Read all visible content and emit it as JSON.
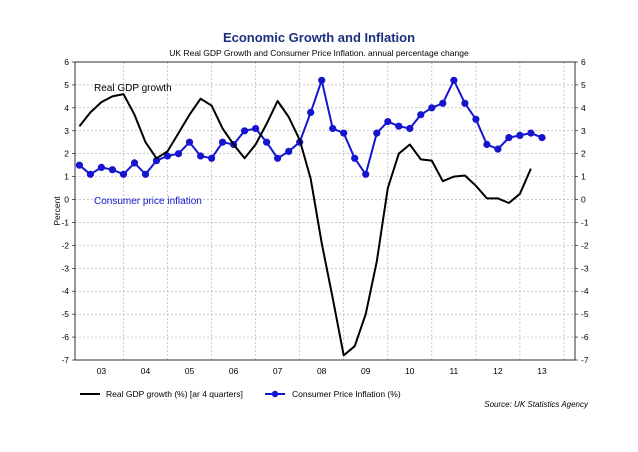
{
  "chart_data": {
    "type": "line",
    "title": "Economic Growth and Inflation",
    "subtitle": "UK Real GDP Growth and Consumer Price Inflation. annual percentage change",
    "ylabel": "Percent",
    "ylim": [
      -7,
      6
    ],
    "yticks": [
      6,
      5,
      4,
      3,
      2,
      1,
      0,
      -1,
      -2,
      -3,
      -4,
      -5,
      -6,
      -7
    ],
    "xlim": [
      2002.4,
      2013.75
    ],
    "x_tick_labels": [
      {
        "label": "03",
        "x": 2003.0
      },
      {
        "label": "04",
        "x": 2004.0
      },
      {
        "label": "05",
        "x": 2005.0
      },
      {
        "label": "06",
        "x": 2006.0
      },
      {
        "label": "07",
        "x": 2007.0
      },
      {
        "label": "08",
        "x": 2008.0
      },
      {
        "label": "09",
        "x": 2009.0
      },
      {
        "label": "10",
        "x": 2010.0
      },
      {
        "label": "11",
        "x": 2011.0
      },
      {
        "label": "12",
        "x": 2012.0
      },
      {
        "label": "13",
        "x": 2013.0
      }
    ],
    "grid": true,
    "series": [
      {
        "name": "Real GDP growth (%) [ar 4 quarters]",
        "color": "#000000",
        "marker": "none",
        "x": [
          2002.5,
          2002.75,
          2003.0,
          2003.25,
          2003.5,
          2003.75,
          2004.0,
          2004.25,
          2004.5,
          2004.75,
          2005.0,
          2005.25,
          2005.5,
          2005.75,
          2006.0,
          2006.25,
          2006.5,
          2006.75,
          2007.0,
          2007.25,
          2007.5,
          2007.75,
          2008.0,
          2008.25,
          2008.5,
          2008.75,
          2009.0,
          2009.25,
          2009.5,
          2009.75,
          2010.0,
          2010.25,
          2010.5,
          2010.75,
          2011.0,
          2011.25,
          2011.5,
          2011.75,
          2012.0,
          2012.25,
          2012.5,
          2012.75,
          2013.0
        ],
        "values": [
          3.2,
          3.8,
          4.25,
          4.5,
          4.6,
          3.7,
          2.5,
          1.8,
          2.1,
          2.9,
          3.7,
          4.4,
          4.1,
          3.1,
          2.4,
          1.8,
          2.4,
          3.3,
          4.3,
          3.6,
          2.6,
          0.9,
          -1.9,
          -4.3,
          -6.8,
          -6.4,
          -5.0,
          -2.7,
          0.5,
          2.0,
          2.4,
          1.75,
          1.7,
          0.8,
          1.0,
          1.05,
          0.6,
          0.05,
          0.05,
          -0.15,
          0.25,
          1.35,
          1.35
        ],
        "stop_after_index": 41
      },
      {
        "name": "Consumer Price Inflation (%)",
        "color": "#1515d0",
        "marker": "circle",
        "x": [
          2002.5,
          2002.75,
          2003.0,
          2003.25,
          2003.5,
          2003.75,
          2004.0,
          2004.25,
          2004.5,
          2004.75,
          2005.0,
          2005.25,
          2005.5,
          2005.75,
          2006.0,
          2006.25,
          2006.5,
          2006.75,
          2007.0,
          2007.25,
          2007.5,
          2007.75,
          2008.0,
          2008.25,
          2008.5,
          2008.75,
          2009.0,
          2009.25,
          2009.5,
          2009.75,
          2010.0,
          2010.25,
          2010.5,
          2010.75,
          2011.0,
          2011.25,
          2011.5,
          2011.75,
          2012.0,
          2012.25,
          2012.5,
          2012.75,
          2013.0
        ],
        "values": [
          1.5,
          1.1,
          1.4,
          1.3,
          1.1,
          1.6,
          1.1,
          1.7,
          1.9,
          2.0,
          2.5,
          1.9,
          1.8,
          2.5,
          2.4,
          3.0,
          3.1,
          2.5,
          1.8,
          2.1,
          2.5,
          3.8,
          5.2,
          3.1,
          2.9,
          1.8,
          1.1,
          2.9,
          3.4,
          3.2,
          3.1,
          3.7,
          4.0,
          4.2,
          5.2,
          4.2,
          3.5,
          2.4,
          2.2,
          2.7,
          2.8,
          2.9,
          2.7
        ]
      }
    ],
    "annotations": [
      {
        "text": "Real GDP growth",
        "color": "#000000"
      },
      {
        "text": "Consumer price inflation",
        "color": "#1515d0"
      }
    ],
    "legend": [
      {
        "label": "Real GDP growth (%) [ar 4 quarters]",
        "color": "#000000",
        "marker": "none"
      },
      {
        "label": "Consumer Price Inflation (%)",
        "color": "#1515d0",
        "marker": "circle"
      }
    ],
    "source": "Source: UK Statistics Agency"
  }
}
